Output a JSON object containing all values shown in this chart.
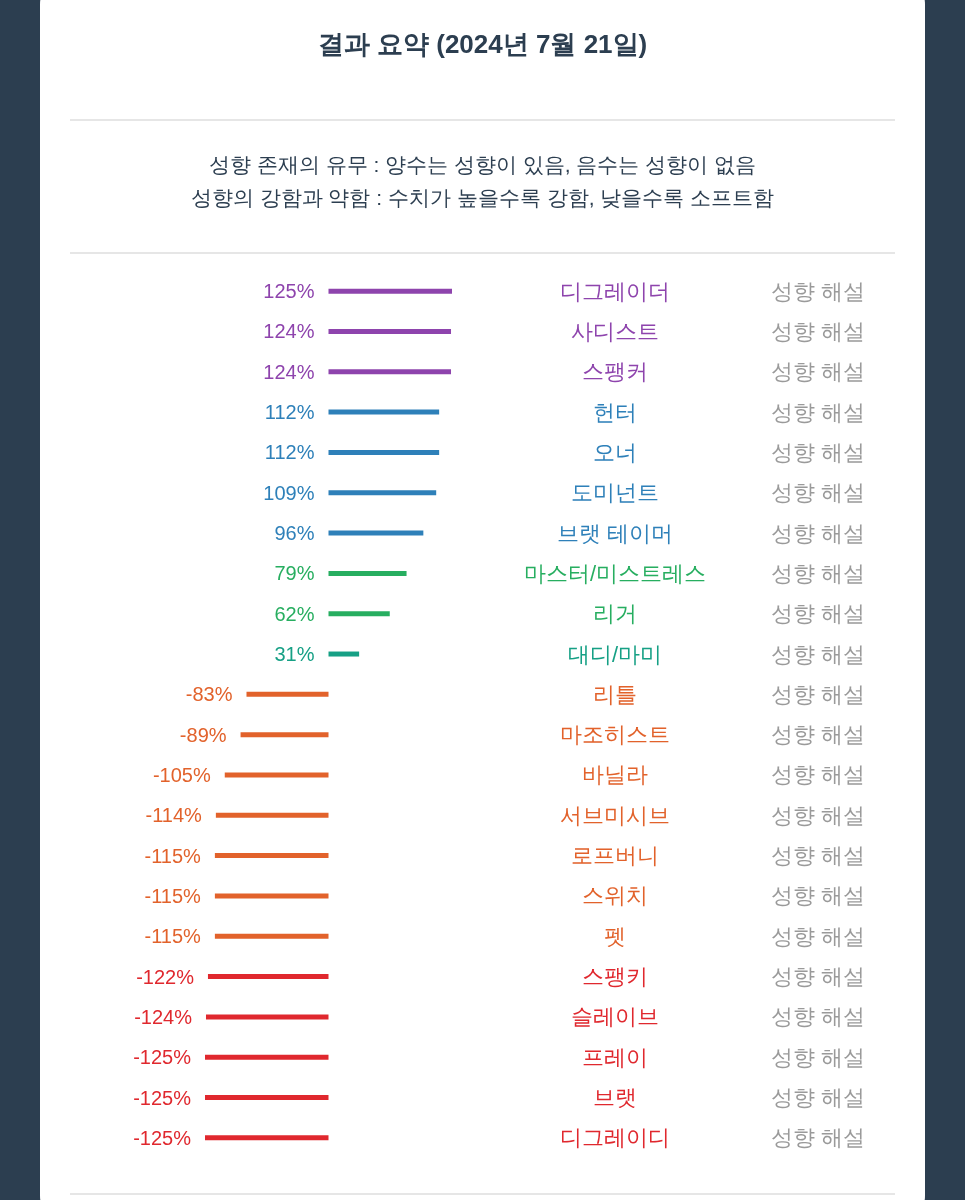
{
  "chart_data": {
    "type": "bar",
    "orientation": "horizontal",
    "title": "결과 요약 (2024년 7월 21일)",
    "subtitle": "성향 존재의 유무 : 양수는 성향이 있음, 음수는 성향이 없음\n성향의 강함과 약함 : 수치가 높을수록 강함, 낮을수록 소프트함",
    "categories": [
      "디그레이더",
      "사디스트",
      "스팽커",
      "헌터",
      "오너",
      "도미넌트",
      "브랫 테이머",
      "마스터/미스트레스",
      "리거",
      "대디/마미",
      "리틀",
      "마조히스트",
      "바닐라",
      "서브미시브",
      "로프버니",
      "스위치",
      "펫",
      "스팽키",
      "슬레이브",
      "프레이",
      "브랫",
      "디그레이디"
    ],
    "values": [
      125,
      124,
      124,
      112,
      112,
      109,
      96,
      79,
      62,
      31,
      -83,
      -89,
      -105,
      -114,
      -115,
      -115,
      -115,
      -122,
      -124,
      -125,
      -125,
      -125
    ],
    "value_labels": [
      "125%",
      "124%",
      "124%",
      "112%",
      "112%",
      "109%",
      "96%",
      "79%",
      "62%",
      "31%",
      "-83%",
      "-89%",
      "-105%",
      "-114%",
      "-115%",
      "-115%",
      "-115%",
      "-122%",
      "-124%",
      "-125%",
      "-125%",
      "-125%"
    ],
    "colors": [
      "#8e44ad",
      "#8e44ad",
      "#8e44ad",
      "#2e80b9",
      "#2e80b9",
      "#2e80b9",
      "#2e80b9",
      "#27ae60",
      "#27ae60",
      "#16a085",
      "#e2622b",
      "#e2622b",
      "#e2622b",
      "#e2622b",
      "#e2622b",
      "#e2622b",
      "#e2622b",
      "#e0282e",
      "#e0282e",
      "#e0282e",
      "#e0282e",
      "#e0282e"
    ],
    "annotations": [
      "성향 해설",
      "성향 해설",
      "성향 해설",
      "성향 해설",
      "성향 해설",
      "성향 해설",
      "성향 해설",
      "성향 해설",
      "성향 해설",
      "성향 해설",
      "성향 해설",
      "성향 해설",
      "성향 해설",
      "성향 해설",
      "성향 해설",
      "성향 해설",
      "성향 해설",
      "성향 해설",
      "성향 해설",
      "성향 해설",
      "성향 해설",
      "성향 해설"
    ],
    "xlim": [
      -125,
      125
    ]
  }
}
